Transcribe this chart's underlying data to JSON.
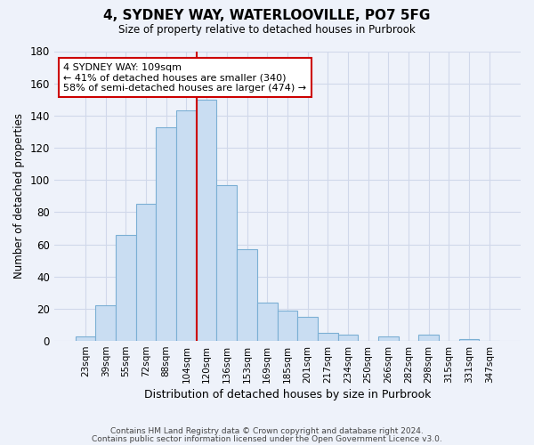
{
  "title": "4, SYDNEY WAY, WATERLOOVILLE, PO7 5FG",
  "subtitle": "Size of property relative to detached houses in Purbrook",
  "xlabel": "Distribution of detached houses by size in Purbrook",
  "ylabel": "Number of detached properties",
  "bar_labels": [
    "23sqm",
    "39sqm",
    "55sqm",
    "72sqm",
    "88sqm",
    "104sqm",
    "120sqm",
    "136sqm",
    "153sqm",
    "169sqm",
    "185sqm",
    "201sqm",
    "217sqm",
    "234sqm",
    "250sqm",
    "266sqm",
    "282sqm",
    "298sqm",
    "315sqm",
    "331sqm",
    "347sqm"
  ],
  "bar_heights": [
    3,
    22,
    66,
    85,
    133,
    143,
    150,
    97,
    57,
    24,
    19,
    15,
    5,
    4,
    0,
    3,
    0,
    4,
    0,
    1,
    0
  ],
  "bar_color": "#c9ddf2",
  "bar_edge_color": "#7bafd4",
  "vline_color": "#cc0000",
  "vline_position": 6,
  "annotation_text": "4 SYDNEY WAY: 109sqm\n← 41% of detached houses are smaller (340)\n58% of semi-detached houses are larger (474) →",
  "annotation_box_color": "#ffffff",
  "annotation_box_edge": "#cc0000",
  "ylim": [
    0,
    180
  ],
  "yticks": [
    0,
    20,
    40,
    60,
    80,
    100,
    120,
    140,
    160,
    180
  ],
  "footer_line1": "Contains HM Land Registry data © Crown copyright and database right 2024.",
  "footer_line2": "Contains public sector information licensed under the Open Government Licence v3.0.",
  "bg_color": "#eef2fa",
  "grid_color": "#d0d8ea"
}
